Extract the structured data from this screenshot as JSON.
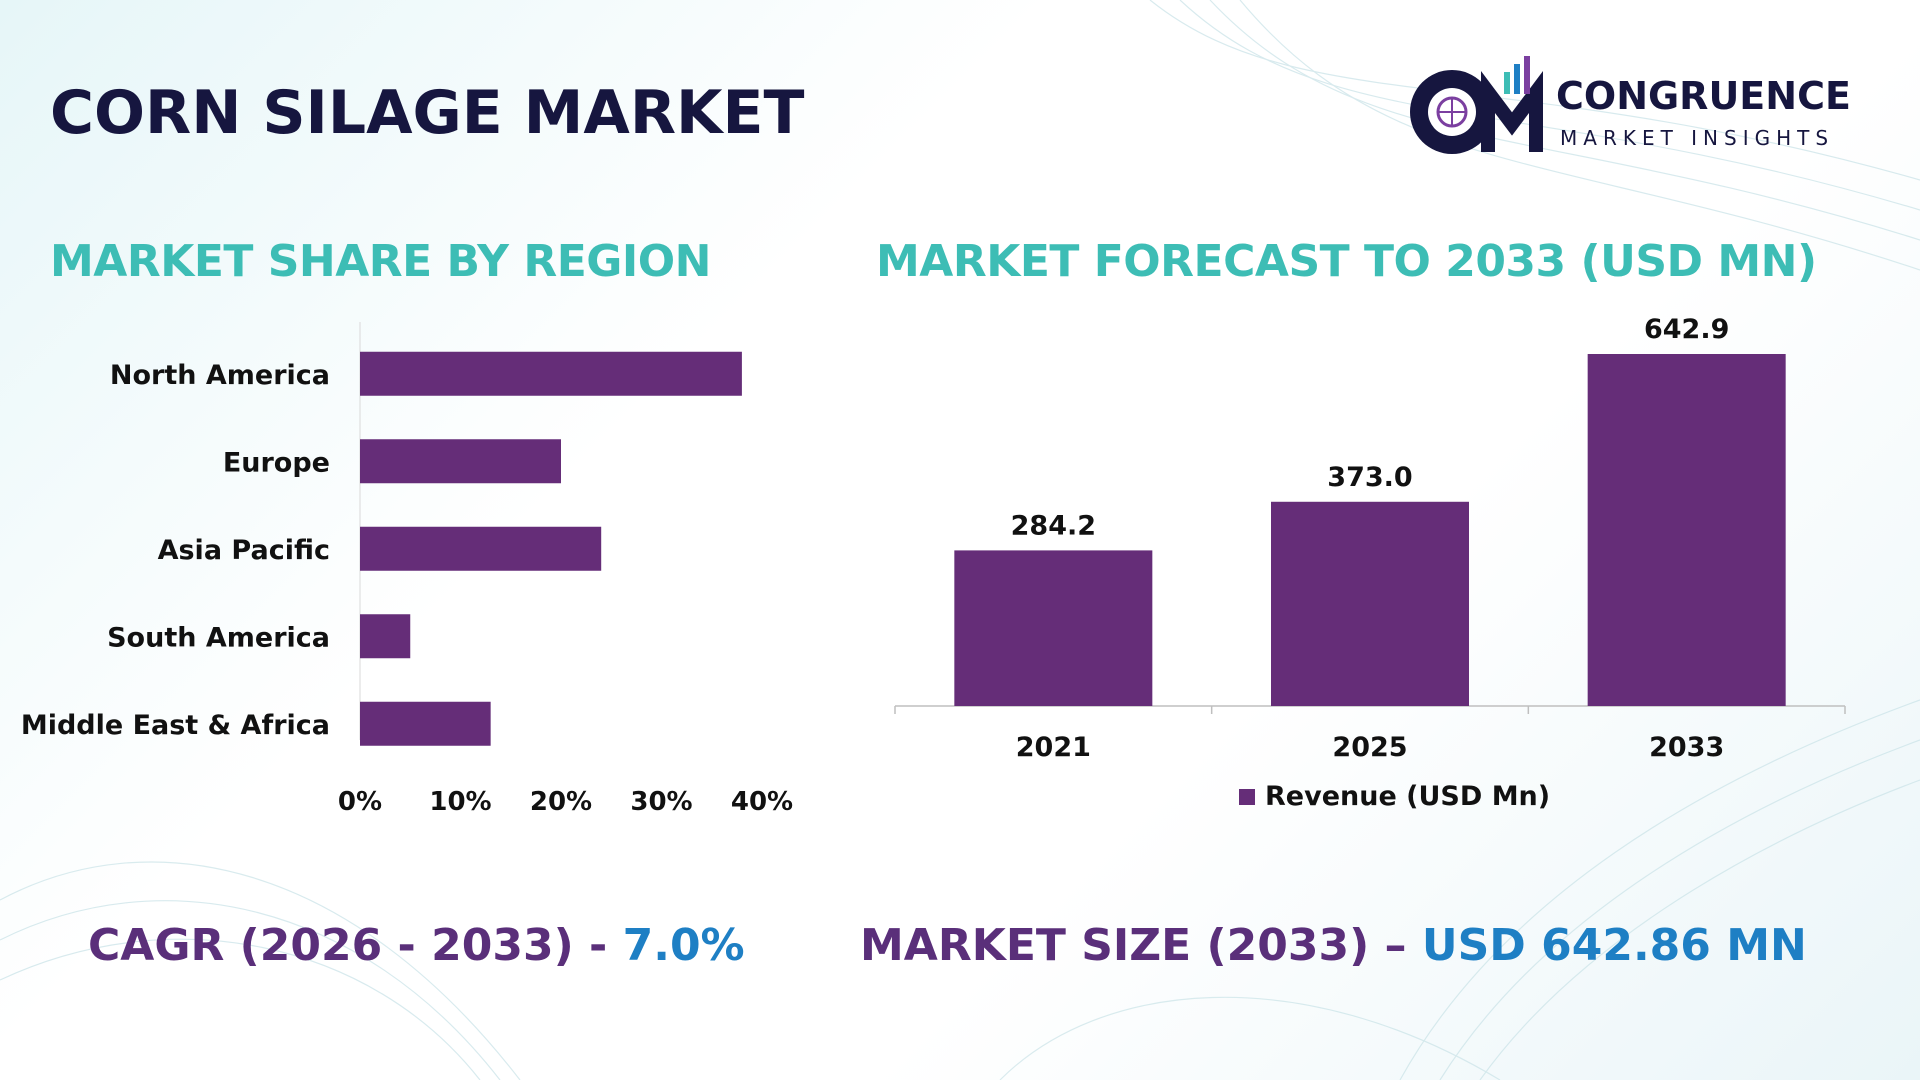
{
  "title": "CORN SILAGE MARKET",
  "logo": {
    "line1": "CONGRUENCE",
    "line2": "MARKET INSIGHTS",
    "mark": "CM"
  },
  "colors": {
    "bar": "#652d78",
    "title": "#16163f",
    "section": "#3dbdb5",
    "accent": "#1e7fc4",
    "stat": "#5a2f7a"
  },
  "sections": {
    "left_title": "MARKET SHARE BY REGION",
    "right_title": "MARKET FORECAST TO 2033 (USD MN)"
  },
  "stats": {
    "cagr_label": "CAGR (2026 - 2033) - ",
    "cagr_value": "7.0%",
    "size_label": "MARKET SIZE (2033) – ",
    "size_value": "USD 642.86 MN"
  },
  "chart_data": [
    {
      "type": "bar",
      "orientation": "horizontal",
      "categories": [
        "North America",
        "Europe",
        "Asia Pacific",
        "South America",
        "Middle East & Africa"
      ],
      "values": [
        38,
        20,
        24,
        5,
        13
      ],
      "xlim": [
        0,
        40
      ],
      "xticks": [
        "0%",
        "10%",
        "20%",
        "30%",
        "40%"
      ],
      "xtick_values": [
        0,
        10,
        20,
        30,
        40
      ],
      "grid": false
    },
    {
      "type": "bar",
      "orientation": "vertical",
      "categories": [
        "2021",
        "2025",
        "2033"
      ],
      "series": [
        {
          "name": "Revenue (USD Mn)",
          "values": [
            284.2,
            373.0,
            642.9
          ]
        }
      ],
      "data_labels": [
        "284.2",
        "373.0",
        "642.9"
      ],
      "ylim": [
        0,
        642.9
      ],
      "legend": "bottom",
      "grid": false
    }
  ]
}
